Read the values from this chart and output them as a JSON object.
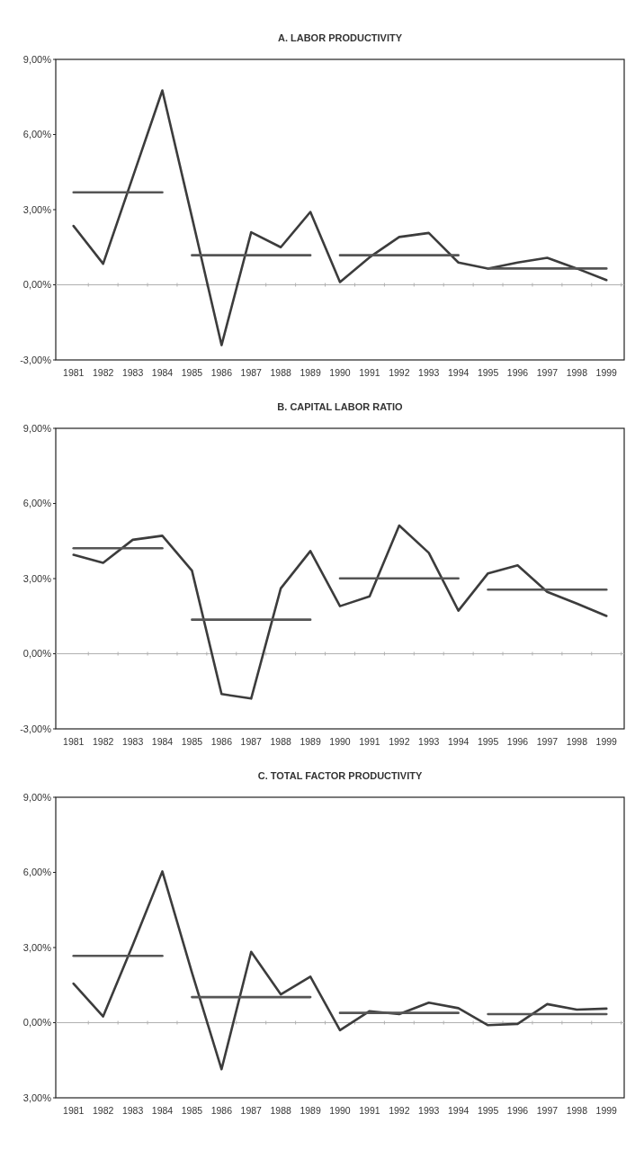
{
  "chart_data": [
    {
      "type": "line",
      "title": "A. LABOR PRODUCTIVITY",
      "categories": [
        "1981",
        "1982",
        "1983",
        "1984",
        "1985",
        "1986",
        "1987",
        "1988",
        "1989",
        "1990",
        "1991",
        "1992",
        "1993",
        "1994",
        "1995",
        "1996",
        "1997",
        "1998",
        "1999"
      ],
      "ylim": [
        -3,
        9
      ],
      "yticks": [
        {
          "value": -3,
          "label": "-3,00%"
        },
        {
          "value": 0,
          "label": "0,00%"
        },
        {
          "value": 3,
          "label": "3,00%"
        },
        {
          "value": 6,
          "label": "6,00%"
        },
        {
          "value": 9,
          "label": "9,00%"
        }
      ],
      "grid": false,
      "marker": "none",
      "line_style": "solid",
      "ref_lines": [
        {
          "axis": "y",
          "value": 0,
          "color": "#b0b0b0"
        }
      ],
      "series": [
        {
          "color": "#3c3c3c",
          "values": [
            2.35,
            0.84,
            4.3,
            7.76,
            2.7,
            -2.41,
            2.1,
            1.5,
            2.91,
            0.11,
            1.1,
            1.91,
            2.07,
            0.89,
            0.65,
            0.89,
            1.08,
            0.65,
            0.19
          ]
        },
        {
          "color": "#555555",
          "values": [
            3.69,
            3.69,
            3.69,
            3.69,
            null,
            null,
            null,
            null,
            null,
            null,
            null,
            null,
            null,
            null,
            null,
            null,
            null,
            null,
            null
          ]
        },
        {
          "color": "#555555",
          "values": [
            null,
            null,
            null,
            null,
            1.18,
            1.18,
            1.18,
            1.18,
            1.18,
            null,
            null,
            null,
            null,
            null,
            null,
            null,
            null,
            null,
            null
          ]
        },
        {
          "color": "#555555",
          "values": [
            null,
            null,
            null,
            null,
            null,
            null,
            null,
            null,
            null,
            1.18,
            1.18,
            1.18,
            1.18,
            1.18,
            null,
            null,
            null,
            null,
            null
          ]
        },
        {
          "color": "#555555",
          "values": [
            null,
            null,
            null,
            null,
            null,
            null,
            null,
            null,
            null,
            null,
            null,
            null,
            null,
            null,
            0.65,
            0.65,
            0.65,
            0.65,
            0.65
          ]
        }
      ]
    },
    {
      "type": "line",
      "title": "B. CAPITAL LABOR RATIO",
      "categories": [
        "1981",
        "1982",
        "1983",
        "1984",
        "1985",
        "1986",
        "1987",
        "1988",
        "1989",
        "1990",
        "1991",
        "1992",
        "1993",
        "1994",
        "1995",
        "1996",
        "1997",
        "1998",
        "1999"
      ],
      "ylim": [
        -3,
        9
      ],
      "yticks": [
        {
          "value": -3,
          "label": "-3,00%"
        },
        {
          "value": 0,
          "label": "0,00%"
        },
        {
          "value": 3,
          "label": "3,00%"
        },
        {
          "value": 6,
          "label": "6,00%"
        },
        {
          "value": 9,
          "label": "9,00%"
        }
      ],
      "grid": false,
      "marker": "none",
      "line_style": "solid",
      "ref_lines": [
        {
          "axis": "y",
          "value": 0,
          "color": "#b0b0b0"
        }
      ],
      "series": [
        {
          "color": "#3c3c3c",
          "values": [
            3.95,
            3.63,
            4.55,
            4.71,
            3.32,
            -1.61,
            -1.79,
            2.61,
            4.1,
            1.9,
            2.29,
            5.12,
            4.03,
            1.72,
            3.21,
            3.53,
            2.47,
            2.0,
            1.51
          ]
        },
        {
          "color": "#555555",
          "values": [
            4.21,
            4.21,
            4.21,
            4.21,
            null,
            null,
            null,
            null,
            null,
            null,
            null,
            null,
            null,
            null,
            null,
            null,
            null,
            null,
            null
          ]
        },
        {
          "color": "#555555",
          "values": [
            null,
            null,
            null,
            null,
            1.36,
            1.36,
            1.36,
            1.36,
            1.36,
            null,
            null,
            null,
            null,
            null,
            null,
            null,
            null,
            null,
            null
          ]
        },
        {
          "color": "#555555",
          "values": [
            null,
            null,
            null,
            null,
            null,
            null,
            null,
            null,
            null,
            3.01,
            3.01,
            3.01,
            3.01,
            3.01,
            null,
            null,
            null,
            null,
            null
          ]
        },
        {
          "color": "#555555",
          "values": [
            null,
            null,
            null,
            null,
            null,
            null,
            null,
            null,
            null,
            null,
            null,
            null,
            null,
            null,
            2.56,
            2.56,
            2.56,
            2.56,
            2.56
          ]
        }
      ]
    },
    {
      "type": "line",
      "title": "C. TOTAL FACTOR PRODUCTIVITY",
      "categories": [
        "1981",
        "1982",
        "1983",
        "1984",
        "1985",
        "1986",
        "1987",
        "1988",
        "1989",
        "1990",
        "1991",
        "1992",
        "1993",
        "1994",
        "1995",
        "1996",
        "1997",
        "1998",
        "1999"
      ],
      "ylim": [
        -3,
        9
      ],
      "yticks": [
        {
          "value": -3,
          "label": "3,00%"
        },
        {
          "value": 0,
          "label": "0,00%"
        },
        {
          "value": 3,
          "label": "3,00%"
        },
        {
          "value": 6,
          "label": "6,00%"
        },
        {
          "value": 9,
          "label": "9,00%"
        }
      ],
      "grid": false,
      "marker": "none",
      "line_style": "solid",
      "ref_lines": [
        {
          "axis": "y",
          "value": 0,
          "color": "#b0b0b0"
        }
      ],
      "series": [
        {
          "color": "#3c3c3c",
          "values": [
            1.56,
            0.25,
            3.1,
            6.04,
            2.0,
            -1.86,
            2.83,
            1.13,
            1.84,
            -0.3,
            0.46,
            0.34,
            0.8,
            0.58,
            -0.1,
            -0.05,
            0.74,
            0.52,
            0.56
          ]
        },
        {
          "color": "#555555",
          "values": [
            2.67,
            2.67,
            2.67,
            2.67,
            null,
            null,
            null,
            null,
            null,
            null,
            null,
            null,
            null,
            null,
            null,
            null,
            null,
            null,
            null
          ]
        },
        {
          "color": "#555555",
          "values": [
            null,
            null,
            null,
            null,
            1.02,
            1.02,
            1.02,
            1.02,
            1.02,
            null,
            null,
            null,
            null,
            null,
            null,
            null,
            null,
            null,
            null
          ]
        },
        {
          "color": "#555555",
          "values": [
            null,
            null,
            null,
            null,
            null,
            null,
            null,
            null,
            null,
            0.39,
            0.39,
            0.39,
            0.39,
            0.39,
            null,
            null,
            null,
            null,
            null
          ]
        },
        {
          "color": "#555555",
          "values": [
            null,
            null,
            null,
            null,
            null,
            null,
            null,
            null,
            null,
            null,
            null,
            null,
            null,
            null,
            0.34,
            0.34,
            0.34,
            0.34,
            0.34
          ]
        }
      ]
    }
  ]
}
